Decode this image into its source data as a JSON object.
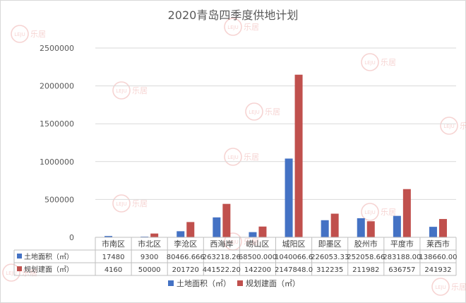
{
  "chart_data": {
    "type": "bar",
    "title": "2020青岛四季度供地计划",
    "categories": [
      "市南区",
      "市北区",
      "李沧区",
      "西海岸",
      "崂山区",
      "城阳区",
      "即墨区",
      "胶州市",
      "平度市",
      "莱西市"
    ],
    "series": [
      {
        "name": "土地面积（㎡）",
        "color": "#4472c4",
        "values": [
          17480,
          9300,
          80466.666,
          263218.26,
          68500.0,
          1040066.6,
          226053.33,
          252058.66,
          283188.0,
          138660.0
        ],
        "labels": [
          "17480",
          "9300",
          "80466.666",
          "263218.26",
          "68500.000",
          "1040066.6",
          "226053.33",
          "252058.66",
          "283188.00",
          "138660.00"
        ]
      },
      {
        "name": "规划建面（㎡）",
        "color": "#c0504d",
        "values": [
          4160,
          50000,
          201720,
          441522.2,
          142200,
          2147848.0,
          312235,
          211982,
          636757,
          241932
        ],
        "labels": [
          "4160",
          "50000",
          "201720",
          "441522.20",
          "142200",
          "2147848.0",
          "312235",
          "211982",
          "636757",
          "241932"
        ]
      }
    ],
    "yticks": [
      "0",
      "500000",
      "1000000",
      "1500000",
      "2000000",
      "2500000"
    ],
    "ylim": [
      0,
      2500000
    ],
    "grid": true,
    "legend": "bottom",
    "data_table": true
  },
  "watermark": {
    "logo_text": "LEJU",
    "text": "乐居"
  }
}
